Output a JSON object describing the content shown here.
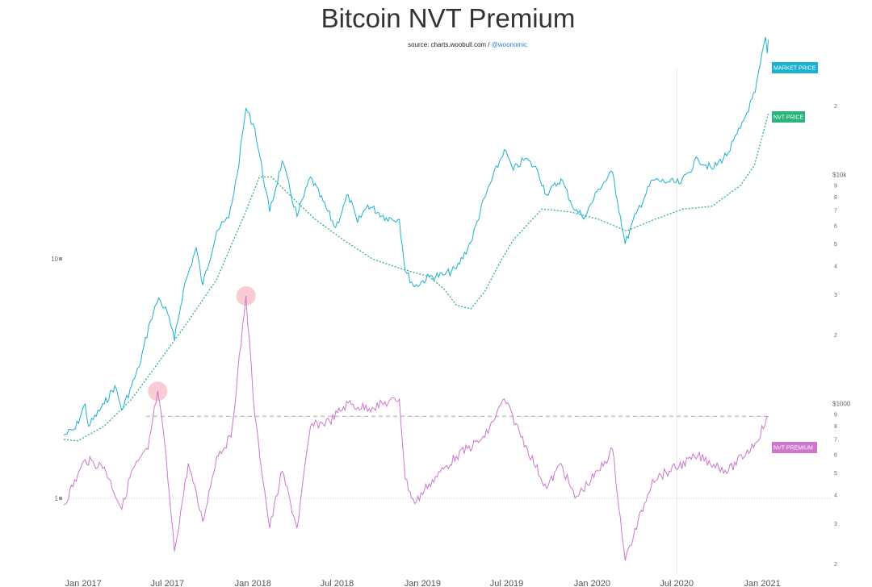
{
  "header": {
    "title": "Bitcoin NVT Premium",
    "source_prefix": "source: charts.woobull.com /",
    "source_handle": "@woonomic"
  },
  "chart_data": {
    "type": "line",
    "title": "Bitcoin NVT Premium",
    "y_scale": "log",
    "x_range": [
      "2016-11-20",
      "2021-01-20"
    ],
    "x_ticks": [
      "Jan 2017",
      "Jul 2017",
      "Jan 2018",
      "Jul 2018",
      "Jan 2019",
      "Jul 2019",
      "Jan 2020",
      "Jul 2020",
      "Jan 2021"
    ],
    "right_axis": {
      "scale": "log",
      "ticks": [
        "2",
        "3",
        "4",
        "5",
        "6",
        "7",
        "8",
        "9",
        "$1000",
        "2",
        "3",
        "4",
        "5",
        "6",
        "7",
        "8",
        "9",
        "$10k",
        "2"
      ]
    },
    "left_axis": {
      "scale": "log",
      "ticks": [
        "1",
        "10"
      ]
    },
    "reference_line": {
      "name": "",
      "value": 1,
      "style": "dotted",
      "color": "#cccccc"
    },
    "premium_threshold": {
      "value": 2.2,
      "style": "dashed",
      "color": "#aaaaaa"
    },
    "vertical_marker": "2020-07-01",
    "highlights": [
      {
        "date": "2017-06-10",
        "series": "NVT PREMIUM"
      },
      {
        "date": "2017-12-17",
        "series": "NVT PREMIUM"
      }
    ],
    "series": [
      {
        "name": "MARKET PRICE",
        "axis": "right",
        "color": "#1ab0d0",
        "points": [
          [
            "2016-11-20",
            730
          ],
          [
            "2016-12-15",
            780
          ],
          [
            "2017-01-05",
            1000
          ],
          [
            "2017-01-12",
            800
          ],
          [
            "2017-02-15",
            1000
          ],
          [
            "2017-03-10",
            1200
          ],
          [
            "2017-03-25",
            940
          ],
          [
            "2017-04-15",
            1200
          ],
          [
            "2017-05-01",
            1450
          ],
          [
            "2017-05-25",
            2300
          ],
          [
            "2017-06-12",
            2900
          ],
          [
            "2017-07-01",
            2500
          ],
          [
            "2017-07-16",
            1900
          ],
          [
            "2017-08-05",
            3200
          ],
          [
            "2017-09-01",
            4800
          ],
          [
            "2017-09-15",
            3300
          ],
          [
            "2017-10-15",
            5700
          ],
          [
            "2017-11-10",
            6500
          ],
          [
            "2017-11-28",
            10000
          ],
          [
            "2017-12-17",
            19500
          ],
          [
            "2018-01-05",
            16000
          ],
          [
            "2018-02-06",
            6900
          ],
          [
            "2018-03-05",
            11500
          ],
          [
            "2018-04-06",
            6600
          ],
          [
            "2018-05-05",
            9800
          ],
          [
            "2018-06-28",
            5900
          ],
          [
            "2018-07-25",
            8200
          ],
          [
            "2018-08-14",
            6200
          ],
          [
            "2018-09-05",
            7400
          ],
          [
            "2018-10-15",
            6500
          ],
          [
            "2018-11-12",
            6400
          ],
          [
            "2018-11-25",
            3800
          ],
          [
            "2018-12-15",
            3250
          ],
          [
            "2019-01-15",
            3600
          ],
          [
            "2019-02-15",
            3650
          ],
          [
            "2019-03-15",
            3900
          ],
          [
            "2019-04-15",
            5100
          ],
          [
            "2019-05-15",
            8000
          ],
          [
            "2019-06-26",
            12900
          ],
          [
            "2019-07-15",
            10500
          ],
          [
            "2019-08-10",
            11800
          ],
          [
            "2019-09-05",
            10500
          ],
          [
            "2019-09-25",
            8200
          ],
          [
            "2019-10-26",
            9600
          ],
          [
            "2019-11-25",
            7000
          ],
          [
            "2019-12-17",
            6600
          ],
          [
            "2020-01-15",
            8700
          ],
          [
            "2020-02-14",
            10300
          ],
          [
            "2020-03-12",
            5000
          ],
          [
            "2020-04-05",
            6800
          ],
          [
            "2020-05-10",
            9500
          ],
          [
            "2020-06-15",
            9300
          ],
          [
            "2020-07-10",
            9200
          ],
          [
            "2020-08-15",
            11800
          ],
          [
            "2020-09-15",
            10600
          ],
          [
            "2020-10-20",
            12500
          ],
          [
            "2020-11-15",
            16000
          ],
          [
            "2020-12-17",
            23000
          ],
          [
            "2021-01-08",
            40000
          ],
          [
            "2021-01-12",
            34000
          ],
          [
            "2021-01-14",
            39000
          ]
        ]
      },
      {
        "name": "NVT PRICE",
        "axis": "right",
        "color": "#2ab37a",
        "points": [
          [
            "2016-11-20",
            700
          ],
          [
            "2016-12-20",
            690
          ],
          [
            "2017-02-15",
            800
          ],
          [
            "2017-04-15",
            1050
          ],
          [
            "2017-06-15",
            1550
          ],
          [
            "2017-08-15",
            2300
          ],
          [
            "2017-10-15",
            3500
          ],
          [
            "2017-12-15",
            6800
          ],
          [
            "2018-01-15",
            9800
          ],
          [
            "2018-02-10",
            9800
          ],
          [
            "2018-03-15",
            8400
          ],
          [
            "2018-05-15",
            6400
          ],
          [
            "2018-07-15",
            5200
          ],
          [
            "2018-09-15",
            4300
          ],
          [
            "2018-11-15",
            3900
          ],
          [
            "2019-01-15",
            3600
          ],
          [
            "2019-02-15",
            3200
          ],
          [
            "2019-03-15",
            2700
          ],
          [
            "2019-04-15",
            2600
          ],
          [
            "2019-05-15",
            3100
          ],
          [
            "2019-06-15",
            4100
          ],
          [
            "2019-07-15",
            5200
          ],
          [
            "2019-09-15",
            7100
          ],
          [
            "2019-11-15",
            6900
          ],
          [
            "2020-01-15",
            6400
          ],
          [
            "2020-03-15",
            5700
          ],
          [
            "2020-05-15",
            6400
          ],
          [
            "2020-07-15",
            7100
          ],
          [
            "2020-09-15",
            7300
          ],
          [
            "2020-11-15",
            9000
          ],
          [
            "2020-12-15",
            11000
          ],
          [
            "2021-01-14",
            18500
          ]
        ]
      },
      {
        "name": "NVT PREMIUM",
        "axis": "left",
        "color": "#cc77cc",
        "points": [
          [
            "2016-11-20",
            0.94
          ],
          [
            "2016-12-20",
            1.25
          ],
          [
            "2017-01-05",
            1.45
          ],
          [
            "2017-02-15",
            1.35
          ],
          [
            "2017-03-25",
            0.9
          ],
          [
            "2017-04-15",
            1.3
          ],
          [
            "2017-05-20",
            1.6
          ],
          [
            "2017-06-10",
            2.8
          ],
          [
            "2017-06-25",
            1.7
          ],
          [
            "2017-07-16",
            0.6
          ],
          [
            "2017-08-15",
            1.4
          ],
          [
            "2017-09-15",
            0.8
          ],
          [
            "2017-10-15",
            1.5
          ],
          [
            "2017-11-15",
            1.8
          ],
          [
            "2017-12-17",
            7.0
          ],
          [
            "2018-01-05",
            2.2
          ],
          [
            "2018-02-06",
            0.75
          ],
          [
            "2018-03-05",
            1.3
          ],
          [
            "2018-04-06",
            0.75
          ],
          [
            "2018-05-05",
            2.0
          ],
          [
            "2018-06-15",
            2.1
          ],
          [
            "2018-07-25",
            2.5
          ],
          [
            "2018-08-15",
            2.4
          ],
          [
            "2018-09-15",
            2.4
          ],
          [
            "2018-11-12",
            2.6
          ],
          [
            "2018-11-25",
            1.2
          ],
          [
            "2018-12-15",
            0.95
          ],
          [
            "2019-01-15",
            1.15
          ],
          [
            "2019-03-15",
            1.5
          ],
          [
            "2019-05-15",
            1.8
          ],
          [
            "2019-06-26",
            2.6
          ],
          [
            "2019-08-15",
            1.6
          ],
          [
            "2019-09-25",
            1.1
          ],
          [
            "2019-10-26",
            1.4
          ],
          [
            "2019-11-25",
            1.0
          ],
          [
            "2020-01-15",
            1.3
          ],
          [
            "2020-02-14",
            1.6
          ],
          [
            "2020-03-12",
            0.55
          ],
          [
            "2020-05-10",
            1.2
          ],
          [
            "2020-06-15",
            1.3
          ],
          [
            "2020-08-15",
            1.5
          ],
          [
            "2020-10-20",
            1.3
          ],
          [
            "2020-12-17",
            1.7
          ],
          [
            "2021-01-14",
            2.2
          ]
        ]
      }
    ]
  },
  "tags": {
    "market_price": "MARKET PRICE",
    "nvt_price": "NVT PRICE",
    "nvt_premium": "NVT PREMIUM"
  },
  "colors": {
    "market_price": "#1ab0d0",
    "nvt_price": "#2ab37a",
    "nvt_premium": "#cc77cc",
    "highlight": "#f4a0b0"
  }
}
